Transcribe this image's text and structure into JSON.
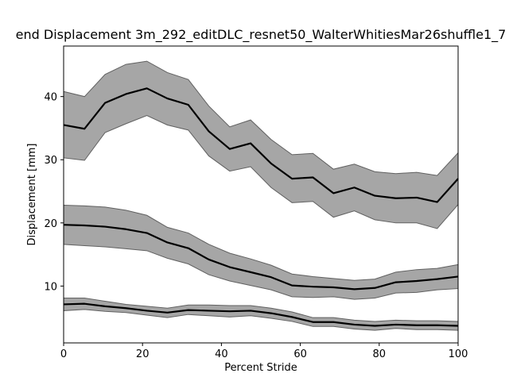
{
  "chart_data": {
    "type": "line",
    "title": "end Displacement 3m_292_editDLC_resnet50_WalterWhitiesMar26shuffle1_7",
    "xlabel": "Percent Stride",
    "ylabel": "Displacement [mm]",
    "xlim": [
      0,
      100
    ],
    "ylim": [
      1,
      48
    ],
    "xticks": [
      0,
      20,
      40,
      60,
      80,
      100
    ],
    "yticks": [
      10,
      20,
      30,
      40
    ],
    "grid": false,
    "colors": {
      "line": "#000000",
      "band_fill": "#808080",
      "band_edge": "#606060"
    },
    "x": [
      0,
      5.3,
      10.5,
      15.8,
      21.1,
      26.3,
      31.6,
      36.8,
      42.1,
      47.4,
      52.6,
      57.9,
      63.2,
      68.4,
      73.7,
      78.9,
      84.2,
      89.5,
      94.7,
      100
    ],
    "series": [
      {
        "mean": [
          35.5,
          34.9,
          39.0,
          40.4,
          41.3,
          39.7,
          38.7,
          34.5,
          31.7,
          32.6,
          29.4,
          27.0,
          27.2,
          24.7,
          25.6,
          24.3,
          23.9,
          24.0,
          23.3,
          27.0
        ],
        "upper": [
          40.8,
          40.0,
          43.5,
          45.1,
          45.6,
          43.8,
          42.7,
          38.5,
          35.2,
          36.3,
          33.2,
          30.8,
          31.0,
          28.5,
          29.3,
          28.1,
          27.8,
          28.0,
          27.5,
          31.1
        ],
        "lower": [
          30.3,
          29.9,
          34.3,
          35.7,
          37.0,
          35.5,
          34.7,
          30.6,
          28.2,
          28.9,
          25.6,
          23.2,
          23.4,
          20.9,
          21.9,
          20.5,
          20.0,
          20.0,
          19.1,
          22.9
        ]
      },
      {
        "mean": [
          19.7,
          19.6,
          19.4,
          19.0,
          18.4,
          16.9,
          16.0,
          14.2,
          13.0,
          12.2,
          11.4,
          10.1,
          9.9,
          9.8,
          9.5,
          9.7,
          10.6,
          10.8,
          11.1,
          11.5
        ],
        "upper": [
          22.8,
          22.7,
          22.5,
          22.0,
          21.2,
          19.3,
          18.4,
          16.6,
          15.2,
          14.3,
          13.3,
          11.9,
          11.5,
          11.2,
          10.9,
          11.1,
          12.2,
          12.6,
          12.8,
          13.4
        ],
        "lower": [
          16.6,
          16.4,
          16.2,
          15.9,
          15.6,
          14.4,
          13.5,
          11.8,
          10.8,
          10.1,
          9.4,
          8.3,
          8.2,
          8.3,
          7.9,
          8.1,
          8.9,
          9.0,
          9.4,
          9.6
        ]
      },
      {
        "mean": [
          7.1,
          7.2,
          6.8,
          6.5,
          6.1,
          5.8,
          6.2,
          6.1,
          6.0,
          6.1,
          5.7,
          5.1,
          4.3,
          4.3,
          3.9,
          3.7,
          3.9,
          3.8,
          3.8,
          3.7
        ],
        "upper": [
          8.1,
          8.1,
          7.6,
          7.1,
          6.8,
          6.5,
          7.0,
          7.0,
          6.9,
          6.9,
          6.5,
          5.9,
          5.0,
          5.0,
          4.6,
          4.4,
          4.6,
          4.5,
          4.5,
          4.4
        ],
        "lower": [
          6.1,
          6.3,
          6.0,
          5.8,
          5.4,
          5.0,
          5.5,
          5.3,
          5.1,
          5.3,
          4.9,
          4.4,
          3.6,
          3.6,
          3.2,
          3.0,
          3.3,
          3.1,
          3.1,
          3.0
        ]
      }
    ]
  }
}
